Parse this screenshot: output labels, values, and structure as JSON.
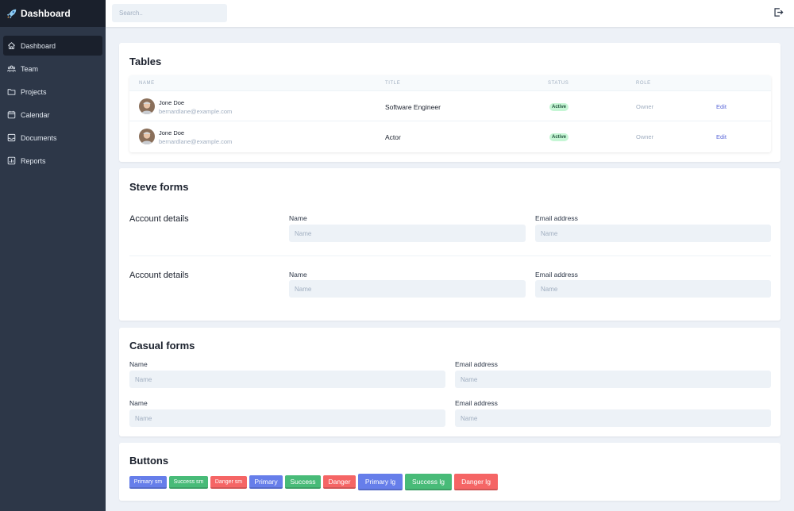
{
  "sidebar": {
    "brand": "Dashboard",
    "items": [
      {
        "label": "Dashboard",
        "icon": "home-icon",
        "active": true
      },
      {
        "label": "Team",
        "icon": "team-icon"
      },
      {
        "label": "Projects",
        "icon": "folder-icon"
      },
      {
        "label": "Calendar",
        "icon": "calendar-icon"
      },
      {
        "label": "Documents",
        "icon": "inbox-icon"
      },
      {
        "label": "Reports",
        "icon": "chart-icon"
      }
    ]
  },
  "header": {
    "search_placeholder": "Search..",
    "logout_icon": "logout-icon"
  },
  "tables": {
    "title": "Tables",
    "columns": [
      "NAME",
      "TITLE",
      "STATUS",
      "ROLE"
    ],
    "rows": [
      {
        "name": "Jone Doe",
        "email": "bernardlane@example.com",
        "title": "Software Engineer",
        "status": "Active",
        "role": "Owner",
        "action": "Edit"
      },
      {
        "name": "Jone Doe",
        "email": "bernardlane@example.com",
        "title": "Actor",
        "status": "Active",
        "role": "Owner",
        "action": "Edit"
      }
    ]
  },
  "steve_forms": {
    "title": "Steve forms",
    "sections": [
      {
        "label": "Account details",
        "name_label": "Name",
        "name_placeholder": "Name",
        "email_label": "Email address",
        "email_placeholder": "Name"
      },
      {
        "label": "Account details",
        "name_label": "Name",
        "name_placeholder": "Name",
        "email_label": "Email address",
        "email_placeholder": "Name"
      }
    ]
  },
  "casual_forms": {
    "title": "Casual forms",
    "rows": [
      {
        "name_label": "Name",
        "name_placeholder": "Name",
        "email_label": "Email address",
        "email_placeholder": "Name"
      },
      {
        "name_label": "Name",
        "name_placeholder": "Name",
        "email_label": "Email address",
        "email_placeholder": "Name"
      }
    ]
  },
  "buttons": {
    "title": "Buttons",
    "labels": [
      "Primary sm",
      "Success sm",
      "Danger sm",
      "Primary",
      "Success",
      "Danger",
      "Primary lg",
      "Success lg",
      "Danger lg"
    ]
  },
  "colors": {
    "sidebar_bg": "#2d3748",
    "brand_bg": "#1a202c",
    "primary": "#667eea",
    "success": "#48bb78",
    "danger": "#f56565",
    "badge_bg": "#c6f6d5",
    "link": "#5a67d8"
  }
}
